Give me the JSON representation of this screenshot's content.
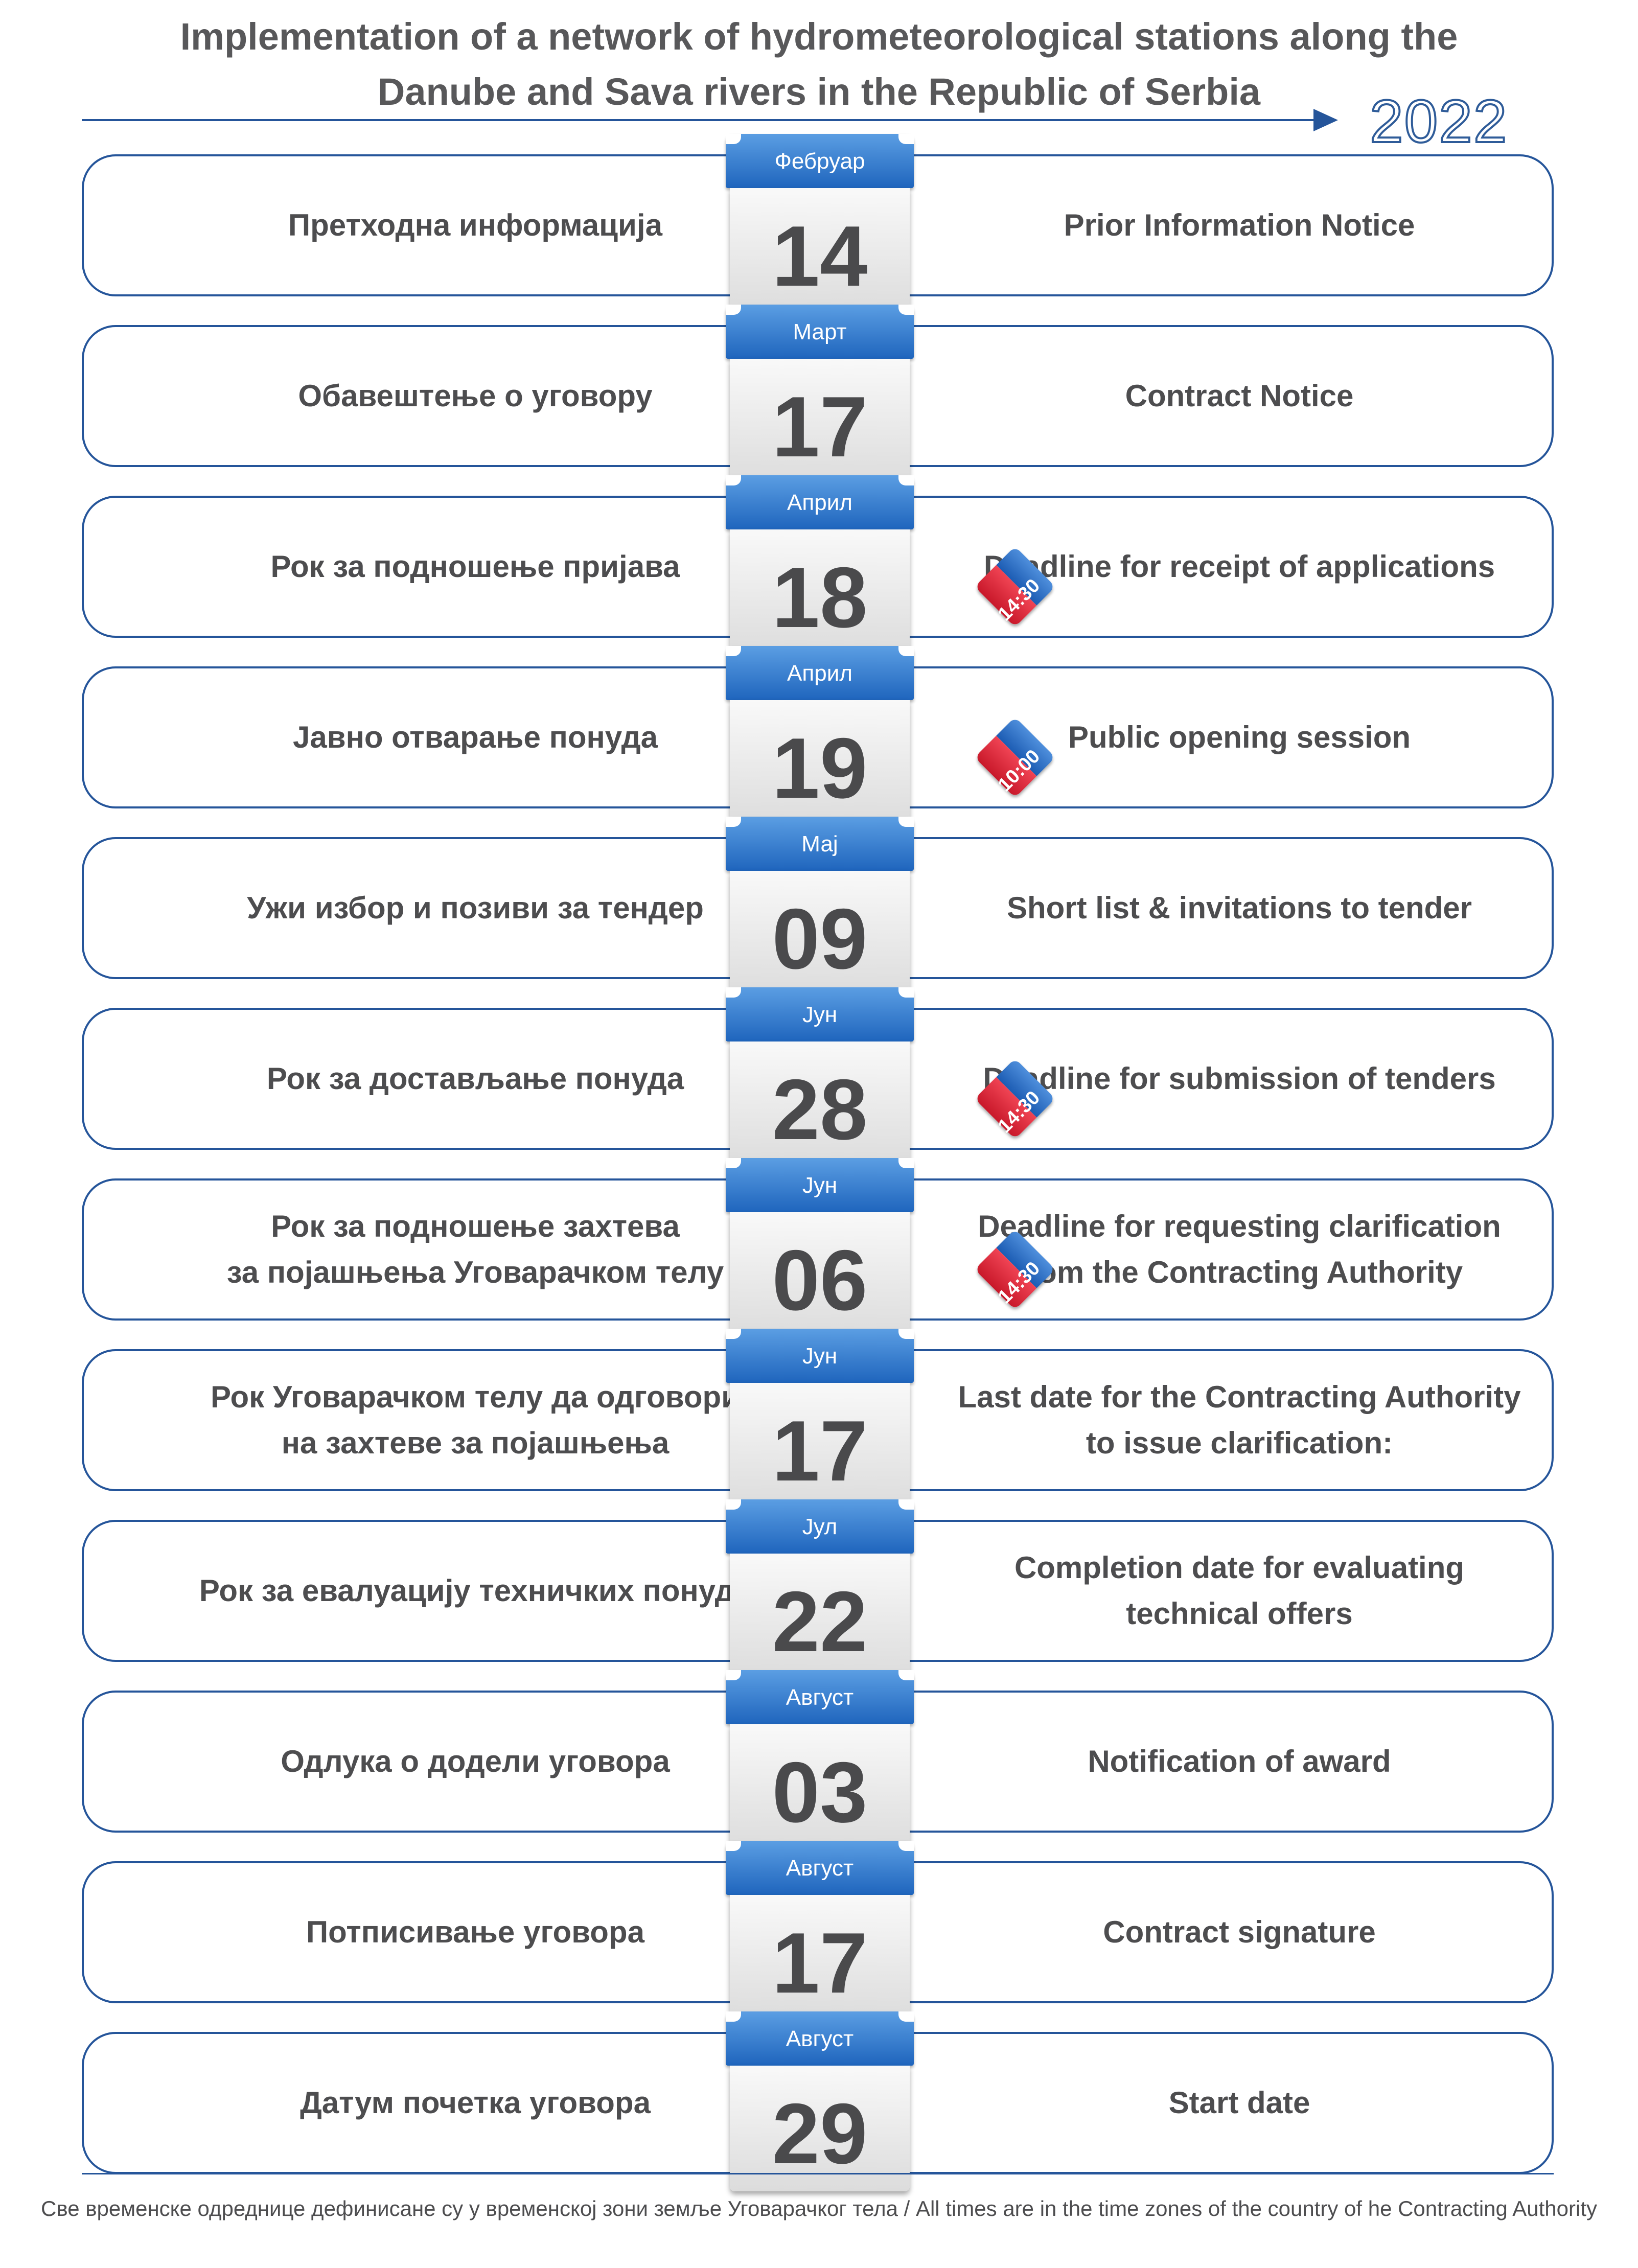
{
  "title": {
    "line1": "Implementation of a network of hydrometeorological stations along the",
    "line2": "Danube and Sava rivers in the Republic of Serbia"
  },
  "year": "2022",
  "colors": {
    "border": "#25559a",
    "calendar_header": "#1f65bd",
    "badge_red": "#e0283a",
    "text": "#4d4d4f"
  },
  "rows": [
    {
      "left": "Претходна информација",
      "month": "Фебруар",
      "day": "14",
      "time": "",
      "right": "Prior Information Notice"
    },
    {
      "left": "Обавештење о уговору",
      "month": "Март",
      "day": "17",
      "time": "",
      "right": "Contract Notice"
    },
    {
      "left": "Рок за подношење пријава",
      "month": "Април",
      "day": "18",
      "time": "14:30",
      "right": "Deadline for receipt of applications"
    },
    {
      "left": "Јавно отварање понуда",
      "month": "Април",
      "day": "19",
      "time": "10:00",
      "right": "Public opening session"
    },
    {
      "left": "Ужи избор и позиви за тендер",
      "month": "Мај",
      "day": "09",
      "time": "",
      "right": "Short list & invitations to tender"
    },
    {
      "left": "Рок за достављање понуда",
      "month": "Јун",
      "day": "28",
      "time": "14:30",
      "right": "Deadline for submission of tenders"
    },
    {
      "left": "Рок за подношење захтева\nза појашњења Уговарачком телу",
      "month": "Јун",
      "day": "06",
      "time": "14:30",
      "right": "Deadline for requesting clarification\nfrom the Contracting Authority"
    },
    {
      "left": "Рок Уговарачком телу да одговори\nна захтеве за појашњења",
      "month": "Јун",
      "day": "17",
      "time": "",
      "right": "Last date for the Contracting Authority\nto issue clarification:"
    },
    {
      "left": "Рок за евалуацију техничких понуда",
      "month": "Јул",
      "day": "22",
      "time": "",
      "right": "Completion date for evaluating\ntechnical offers"
    },
    {
      "left": "Одлука о додели уговора",
      "month": "Август",
      "day": "03",
      "time": "",
      "right": "Notification of award"
    },
    {
      "left": "Потписивање уговора",
      "month": "Август",
      "day": "17",
      "time": "",
      "right": "Contract signature"
    },
    {
      "left": "Датум почетка уговора",
      "month": "Август",
      "day": "29",
      "time": "",
      "right": "Start date"
    }
  ],
  "footer": "Све временске одреднице дефинисане су у временској зони земље Уговарачког тела / All times are in the time zones of the country of he Contracting Authority"
}
